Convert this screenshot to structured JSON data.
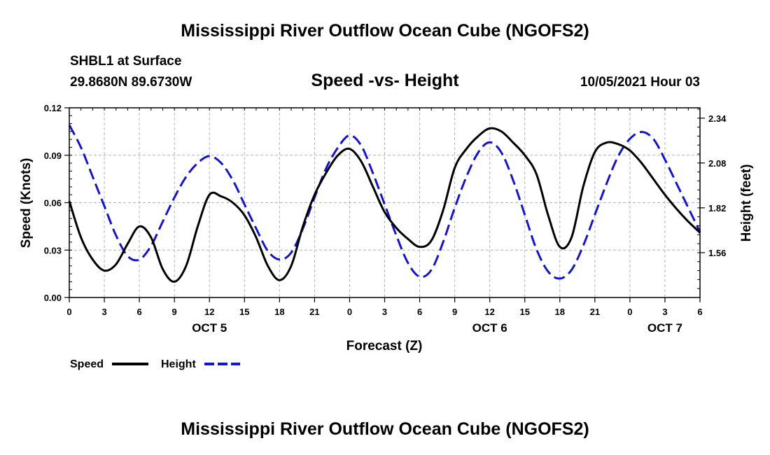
{
  "header": {
    "title": "Mississippi River Outflow Ocean Cube (NGOFS2)",
    "station": "SHBL1 at Surface",
    "coords": "29.8680N  89.6730W",
    "chart_title": "Speed -vs- Height",
    "datetime": "10/05/2021 Hour 03"
  },
  "footer": {
    "title": "Mississippi River Outflow Ocean Cube (NGOFS2)"
  },
  "colors": {
    "speed": "#000000",
    "height": "#1414c8",
    "grid": "#b4b4b4"
  },
  "chart_data": {
    "type": "line",
    "title": "Speed -vs- Height",
    "xlabel": "Forecast (Z)",
    "ylabel": "Speed (Knots)",
    "y2label": "Height (feet)",
    "xlim": [
      0,
      54
    ],
    "ylim": [
      0,
      0.12
    ],
    "y2lim": [
      1.3,
      2.4
    ],
    "x_ticks": [
      0,
      3,
      6,
      9,
      12,
      15,
      18,
      21,
      24,
      27,
      30,
      33,
      36,
      39,
      42,
      45,
      48,
      51,
      54
    ],
    "x_tick_labels": [
      "0",
      "3",
      "6",
      "9",
      "12",
      "15",
      "18",
      "21",
      "0",
      "3",
      "6",
      "9",
      "12",
      "15",
      "18",
      "21",
      "0",
      "3",
      "6"
    ],
    "y_ticks": [
      0,
      0.03,
      0.06,
      0.09,
      0.12
    ],
    "y_tick_labels": [
      "0.00",
      "0.03",
      "0.06",
      "0.09",
      "0.12"
    ],
    "y2_ticks": [
      1.56,
      1.82,
      2.08,
      2.34
    ],
    "y2_tick_labels": [
      "1.56",
      "1.82",
      "2.08",
      "2.34"
    ],
    "day_labels": [
      {
        "x": 12,
        "label": "OCT 5"
      },
      {
        "x": 36,
        "label": "OCT 6"
      },
      {
        "x": 51,
        "label": "OCT 7"
      }
    ],
    "grid": true,
    "legend_position": "bottom-left",
    "series": [
      {
        "name": "Speed",
        "axis": "left",
        "style": "solid",
        "x": [
          0,
          1,
          2,
          3,
          4,
          5,
          6,
          7,
          8,
          9,
          10,
          11,
          12,
          13,
          14,
          15,
          16,
          17,
          18,
          19,
          20,
          21,
          22,
          23,
          24,
          25,
          26,
          27,
          28,
          29,
          30,
          31,
          32,
          33,
          34,
          35,
          36,
          37,
          38,
          39,
          40,
          41,
          42,
          43,
          44,
          45,
          46,
          47,
          48,
          49,
          50,
          51,
          52,
          53,
          54
        ],
        "values": [
          0.061,
          0.038,
          0.024,
          0.017,
          0.021,
          0.034,
          0.045,
          0.038,
          0.018,
          0.01,
          0.02,
          0.045,
          0.065,
          0.064,
          0.06,
          0.052,
          0.038,
          0.02,
          0.011,
          0.02,
          0.045,
          0.065,
          0.079,
          0.09,
          0.094,
          0.086,
          0.07,
          0.054,
          0.044,
          0.037,
          0.032,
          0.036,
          0.055,
          0.082,
          0.094,
          0.102,
          0.107,
          0.105,
          0.098,
          0.09,
          0.078,
          0.052,
          0.032,
          0.038,
          0.07,
          0.092,
          0.098,
          0.097,
          0.093,
          0.085,
          0.075,
          0.065,
          0.056,
          0.048,
          0.041
        ]
      },
      {
        "name": "Height",
        "axis": "right",
        "style": "dashed",
        "x": [
          0,
          1,
          2,
          3,
          4,
          5,
          6,
          7,
          8,
          9,
          10,
          11,
          12,
          13,
          14,
          15,
          16,
          17,
          18,
          19,
          20,
          21,
          22,
          23,
          24,
          25,
          26,
          27,
          28,
          29,
          30,
          31,
          32,
          33,
          34,
          35,
          36,
          37,
          38,
          39,
          40,
          41,
          42,
          43,
          44,
          45,
          46,
          47,
          48,
          49,
          50,
          51,
          52,
          53,
          54
        ],
        "values": [
          2.3,
          2.17,
          2.0,
          1.83,
          1.66,
          1.54,
          1.52,
          1.6,
          1.74,
          1.88,
          2.0,
          2.08,
          2.12,
          2.08,
          1.98,
          1.84,
          1.7,
          1.57,
          1.52,
          1.56,
          1.7,
          1.88,
          2.05,
          2.17,
          2.24,
          2.18,
          2.02,
          1.84,
          1.66,
          1.5,
          1.42,
          1.46,
          1.62,
          1.82,
          2.0,
          2.14,
          2.2,
          2.14,
          1.98,
          1.78,
          1.58,
          1.45,
          1.41,
          1.46,
          1.6,
          1.78,
          1.96,
          2.12,
          2.22,
          2.26,
          2.22,
          2.1,
          1.96,
          1.82,
          1.68
        ]
      }
    ]
  }
}
